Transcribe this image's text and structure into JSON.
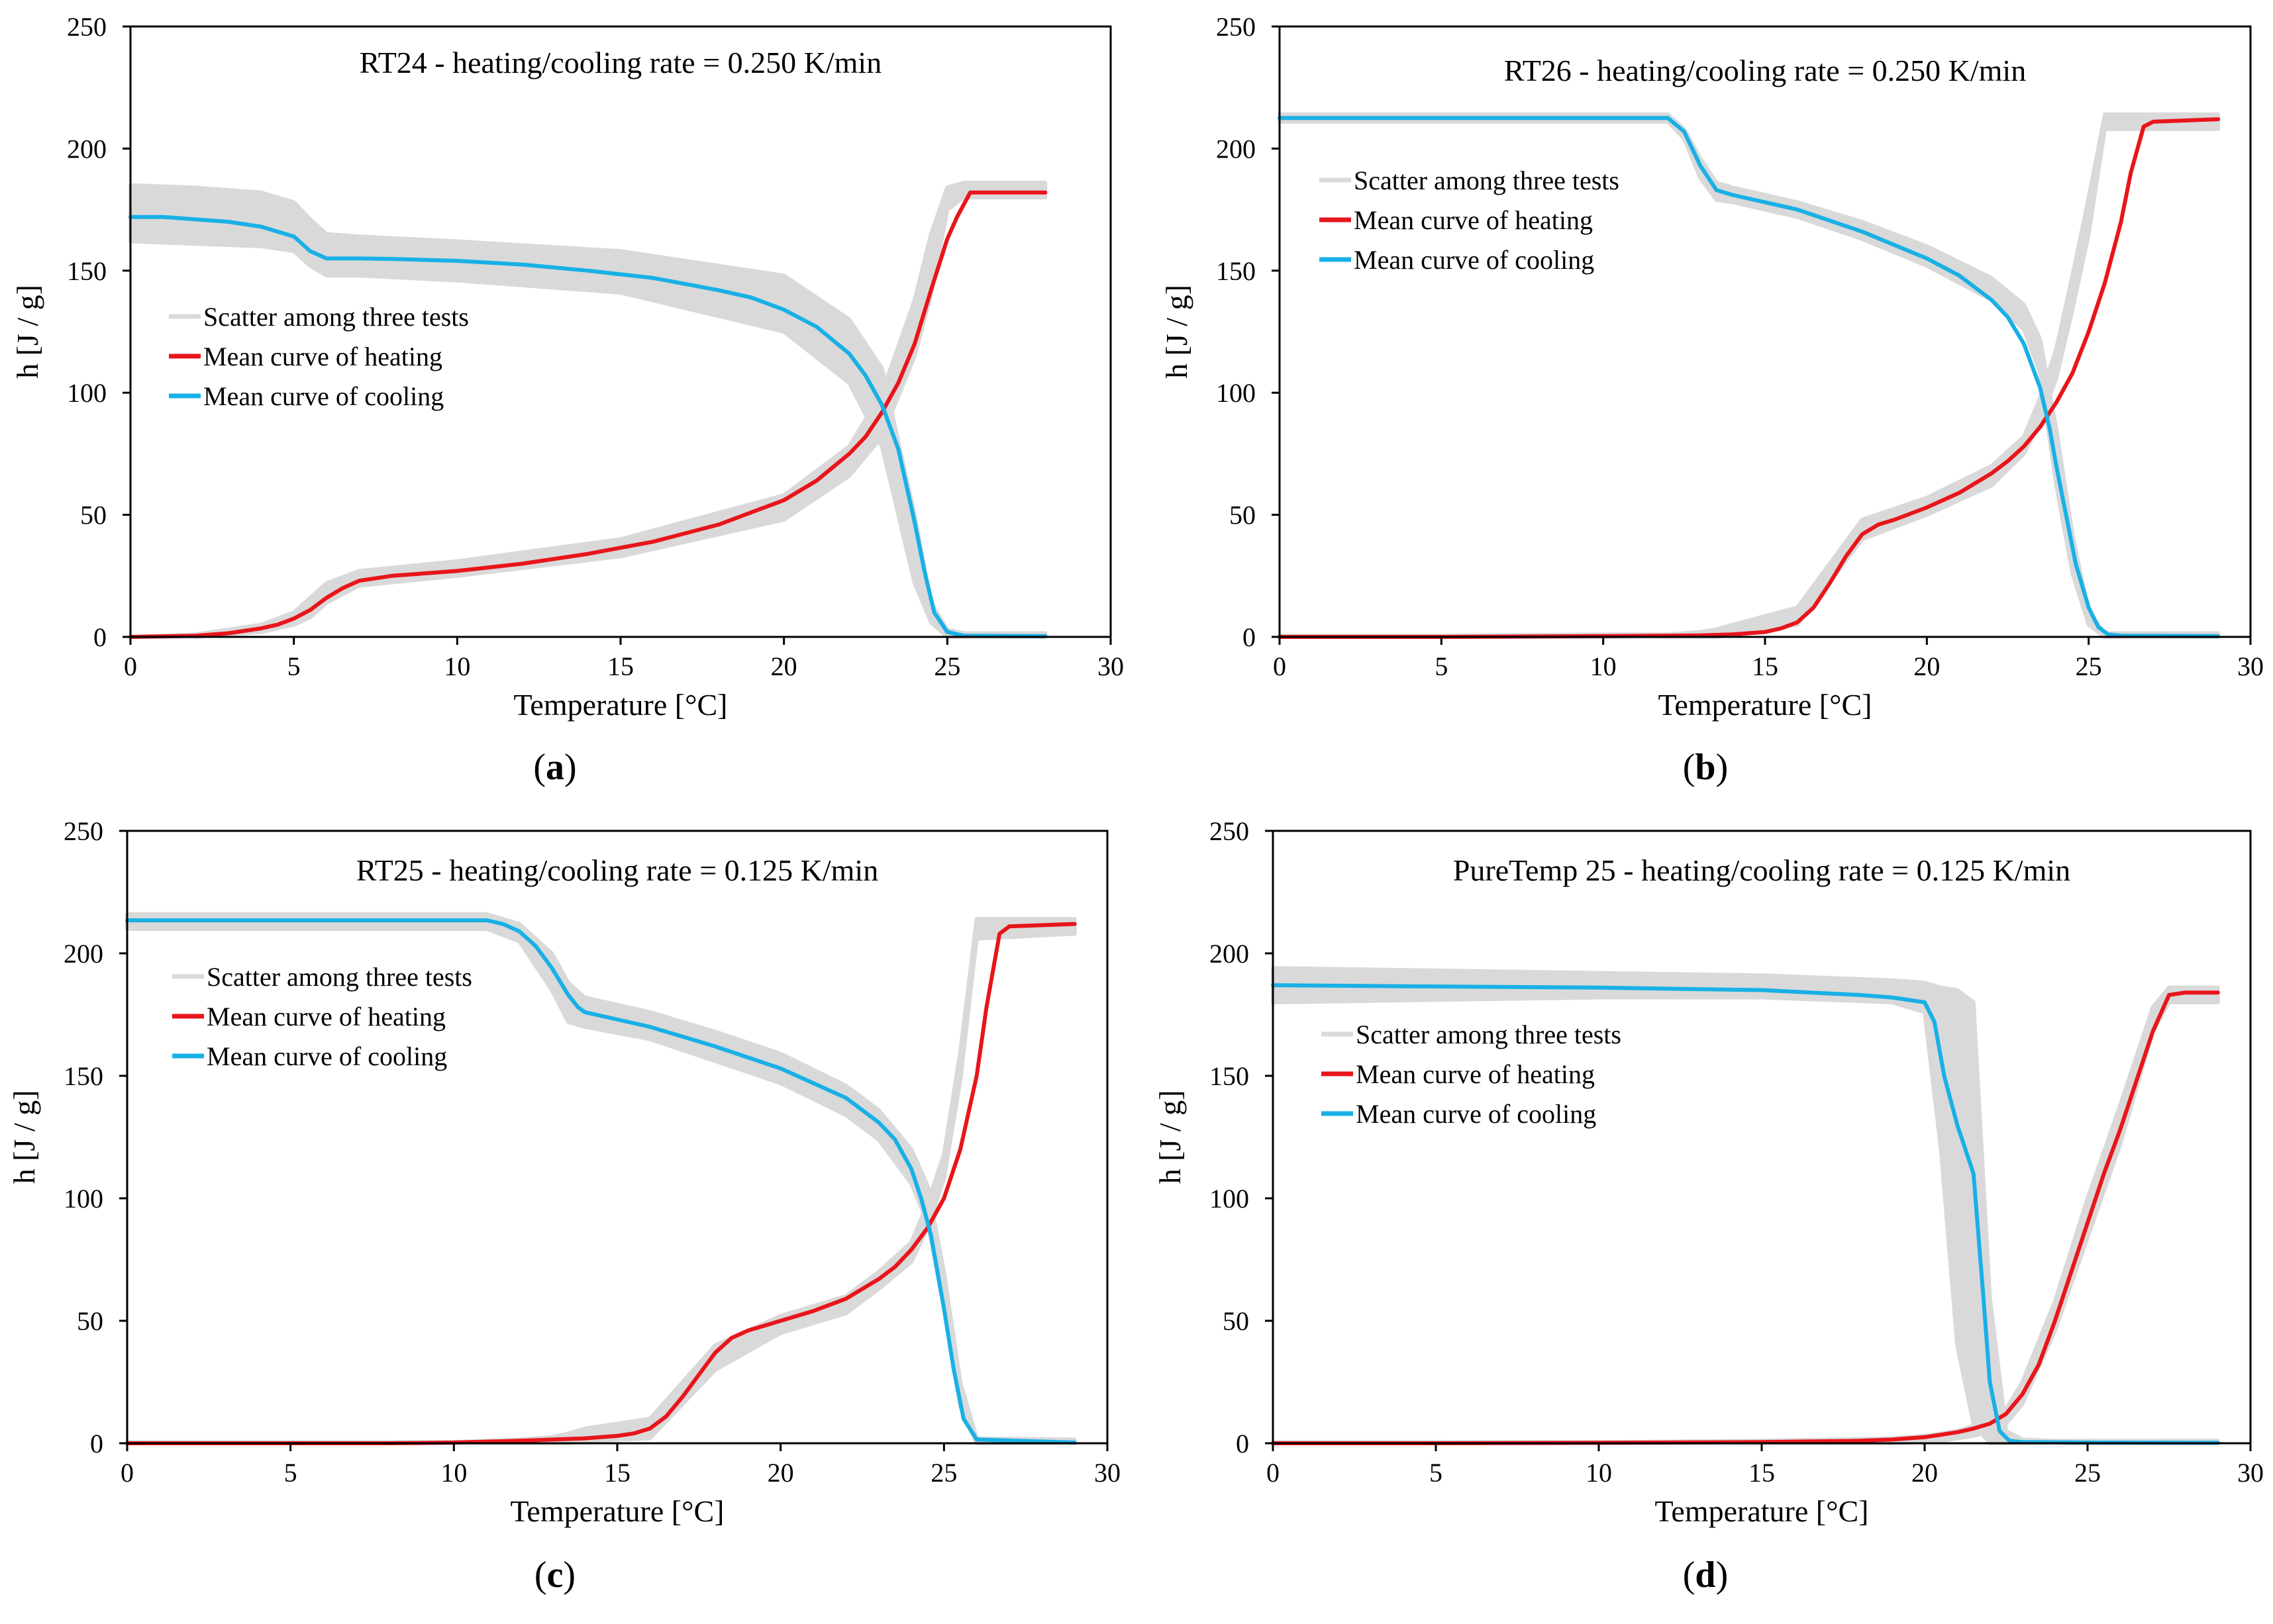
{
  "chart_data": [
    {
      "id": "a",
      "type": "line",
      "caption": "a",
      "title": "RT24 - heating/cooling rate = 0.250 K/min",
      "xlabel": "Temperature [°C]",
      "ylabel": "h [J / g]",
      "xlim": [
        0,
        30
      ],
      "ylim": [
        0,
        250
      ],
      "xticks": [
        0,
        5,
        10,
        15,
        20,
        25,
        30
      ],
      "xtick_labels": [
        "0",
        "5",
        "10",
        "15",
        "20",
        "25",
        "30"
      ],
      "yticks": [
        0,
        50,
        100,
        150,
        200,
        250
      ],
      "legend": {
        "placement": "left"
      },
      "scatter_band": {
        "name": "Scatter among three tests",
        "color": "#d9d9d9",
        "x": [
          0,
          2,
          4,
          5,
          5.5,
          6,
          7,
          10,
          15,
          20,
          22,
          23,
          24,
          24.5,
          25,
          25.5,
          26,
          28
        ],
        "upper": [
          185,
          184,
          182,
          178,
          171,
          165,
          164,
          162,
          158,
          148,
          130,
          110,
          50,
          14,
          3,
          1.5,
          1.5,
          1.5
        ],
        "lower": [
          162,
          161,
          160,
          158,
          152,
          148,
          148,
          146,
          141,
          125,
          104,
          78,
          22,
          6,
          0,
          0,
          0,
          0
        ],
        "heating_upper": [
          0,
          1,
          5,
          10,
          16,
          22,
          27,
          31,
          40,
          58,
          78,
          100,
          138,
          165,
          184,
          186,
          186,
          186
        ],
        "heating_lower": [
          0,
          0,
          2,
          5,
          8,
          14,
          21,
          25,
          33,
          48,
          66,
          82,
          115,
          140,
          175,
          180,
          180,
          180
        ]
      },
      "series": [
        {
          "name": "Mean curve of heating",
          "color": "#e8151b",
          "x": [
            0,
            2,
            3,
            4,
            4.5,
            5,
            5.5,
            6,
            6.5,
            7,
            8,
            10,
            12,
            14,
            16,
            18,
            20,
            21,
            22,
            22.5,
            23,
            23.5,
            24,
            24.5,
            25,
            25.3,
            25.7,
            26,
            28
          ],
          "y": [
            0,
            0.5,
            1.5,
            3.5,
            5,
            7.5,
            11,
            16,
            20,
            23,
            25,
            27,
            30,
            34,
            39,
            46,
            56,
            64,
            75,
            82,
            92,
            104,
            120,
            142,
            163,
            172,
            182,
            182,
            182
          ]
        },
        {
          "name": "Mean curve of cooling",
          "color": "#18b0e6",
          "x": [
            0,
            1,
            2,
            3,
            4,
            5,
            5.5,
            6,
            7,
            8,
            10,
            12,
            14,
            16,
            18,
            19,
            20,
            21,
            22,
            22.5,
            23,
            23.5,
            24,
            24.3,
            24.6,
            25,
            25.5,
            28
          ],
          "y": [
            172,
            172,
            171,
            170,
            168,
            164,
            158,
            155,
            155,
            154.8,
            154,
            152.5,
            150,
            147,
            142,
            139,
            134,
            127,
            116,
            107,
            95,
            77,
            47,
            27,
            10,
            2,
            0.5,
            0.3
          ]
        }
      ]
    },
    {
      "id": "b",
      "type": "line",
      "caption": "b",
      "title": "RT26 - heating/cooling rate = 0.250 K/min",
      "xlabel": "Temperature [°C]",
      "ylabel": "h [J / g]",
      "xlim": [
        0,
        30
      ],
      "ylim": [
        0,
        250
      ],
      "xticks": [
        0,
        5,
        10,
        15,
        20,
        25,
        30
      ],
      "xtick_labels": [
        "0",
        "5",
        "10",
        "15",
        "20",
        "25",
        "30"
      ],
      "yticks": [
        0,
        50,
        100,
        150,
        200,
        250
      ],
      "legend": {
        "placement": "top-left"
      },
      "scatter_band": {
        "name": "Scatter among three tests",
        "color": "#d9d9d9",
        "x": [
          0,
          5,
          10,
          12,
          12.5,
          13,
          13.5,
          14,
          16,
          18,
          20,
          22,
          23,
          23.5,
          24,
          24.5,
          25,
          25.5,
          29
        ],
        "upper": [
          214,
          214,
          214,
          214,
          208,
          196,
          186,
          184,
          178,
          170,
          160,
          147,
          136,
          122,
          85,
          42,
          10,
          1.5,
          1.5
        ],
        "lower": [
          211,
          211,
          211,
          211,
          204,
          188,
          179,
          178,
          172,
          163,
          152,
          138,
          126,
          108,
          62,
          26,
          5,
          0,
          0
        ],
        "heating_upper": [
          0.5,
          0.5,
          1,
          1,
          1.5,
          2,
          3,
          5,
          12,
          48,
          57,
          70,
          82,
          98,
          118,
          148,
          180,
          214,
          214
        ],
        "heating_lower": [
          0,
          0,
          0,
          0,
          0,
          0,
          0,
          1,
          5,
          40,
          50,
          62,
          75,
          88,
          106,
          134,
          165,
          208,
          208
        ]
      },
      "series": [
        {
          "name": "Mean curve of heating",
          "color": "#e8151b",
          "x": [
            0,
            5,
            10,
            13,
            14,
            15,
            15.5,
            16,
            16.5,
            17,
            17.5,
            18,
            18.5,
            19,
            20,
            21,
            22,
            22.5,
            23,
            23.5,
            24,
            24.5,
            25,
            25.5,
            26,
            26.3,
            26.7,
            27,
            29
          ],
          "y": [
            0,
            0,
            0.3,
            0.6,
            1,
            2,
            3.5,
            6,
            12,
            22,
            33,
            42,
            46,
            48,
            53,
            59,
            67,
            72,
            78,
            86,
            96,
            108,
            125,
            145,
            170,
            190,
            209,
            211,
            212
          ]
        },
        {
          "name": "Mean curve of cooling",
          "color": "#18b0e6",
          "x": [
            0,
            5,
            10,
            12,
            12.5,
            13,
            13.5,
            14,
            16,
            18,
            20,
            21,
            22,
            22.5,
            23,
            23.5,
            23.8,
            24,
            24.3,
            24.6,
            25,
            25.3,
            25.6,
            26,
            29
          ],
          "y": [
            212.5,
            212.5,
            212.5,
            212.5,
            207,
            193,
            183,
            181,
            175,
            166,
            155,
            148,
            138,
            131,
            120,
            102,
            85,
            70,
            50,
            30,
            12,
            4,
            1,
            0.5,
            0.3
          ]
        }
      ]
    },
    {
      "id": "c",
      "type": "line",
      "caption": "c",
      "title": "RT25 - heating/cooling rate = 0.125 K/min",
      "xlabel": "Temperature [°C]",
      "ylabel": "h [J / g]",
      "xlim": [
        0,
        30
      ],
      "ylim": [
        0,
        250
      ],
      "xticks": [
        0,
        5,
        10,
        15,
        20,
        25,
        30
      ],
      "xtick_labels": [
        "0",
        "5",
        "10",
        "15",
        "20",
        "25",
        "30"
      ],
      "yticks": [
        0,
        50,
        100,
        150,
        200,
        250
      ],
      "legend": {
        "placement": "top-left"
      },
      "scatter_band": {
        "name": "Scatter among three tests",
        "color": "#d9d9d9",
        "x": [
          0,
          5,
          10,
          11,
          12,
          13,
          13.5,
          14,
          16,
          18,
          20,
          22,
          23,
          24,
          24.5,
          25,
          25.5,
          26,
          29
        ],
        "upper": [
          216,
          216,
          216,
          216,
          212,
          200,
          188,
          182,
          176,
          168,
          159,
          146,
          136,
          120,
          105,
          70,
          25,
          2,
          1.5
        ],
        "lower": [
          210,
          210,
          210,
          210,
          205,
          185,
          172,
          170,
          165,
          156,
          147,
          134,
          124,
          106,
          90,
          55,
          15,
          0,
          0
        ],
        "heating_upper": [
          0.5,
          0.5,
          0.5,
          1,
          1.5,
          2.5,
          4,
          6,
          10,
          40,
          52,
          60,
          70,
          82,
          98,
          118,
          160,
          214,
          214
        ],
        "heating_lower": [
          0,
          0,
          0,
          0,
          0,
          0,
          0,
          1,
          2,
          30,
          45,
          53,
          63,
          74,
          88,
          108,
          148,
          206,
          208
        ]
      },
      "series": [
        {
          "name": "Mean curve of heating",
          "color": "#e8151b",
          "x": [
            0,
            5,
            8,
            10,
            12,
            14,
            15,
            15.5,
            16,
            16.5,
            17,
            17.5,
            18,
            18.5,
            19,
            20,
            21,
            22,
            23,
            23.5,
            24,
            24.5,
            25,
            25.5,
            26,
            26.3,
            26.7,
            27,
            29
          ],
          "y": [
            0,
            0,
            0,
            0.3,
            1,
            2,
            3,
            4,
            6,
            11,
            19,
            28,
            37,
            43,
            46,
            50,
            54,
            59,
            67,
            72,
            79,
            88,
            100,
            120,
            150,
            178,
            208,
            211,
            212
          ]
        },
        {
          "name": "Mean curve of cooling",
          "color": "#18b0e6",
          "x": [
            0,
            5,
            10,
            11,
            11.5,
            12,
            12.5,
            13,
            13.5,
            13.8,
            14,
            16,
            18,
            20,
            22,
            23,
            23.5,
            24,
            24.3,
            24.6,
            25,
            25.3,
            25.6,
            26,
            29
          ],
          "y": [
            213.5,
            213.5,
            213.5,
            213.5,
            212,
            209,
            203,
            194,
            183,
            178,
            176,
            170,
            162,
            153,
            141,
            131,
            124,
            112,
            100,
            85,
            55,
            30,
            10,
            1.5,
            0.3
          ]
        }
      ]
    },
    {
      "id": "d",
      "type": "line",
      "caption": "d",
      "title": "PureTemp 25 - heating/cooling rate = 0.125 K/min",
      "xlabel": "Temperature [°C]",
      "ylabel": "h [J / g]",
      "xlim": [
        0,
        30
      ],
      "ylim": [
        0,
        250
      ],
      "xticks": [
        0,
        5,
        10,
        15,
        20,
        25,
        30
      ],
      "xtick_labels": [
        "0",
        "5",
        "10",
        "15",
        "20",
        "25",
        "30"
      ],
      "yticks": [
        0,
        50,
        100,
        150,
        200,
        250
      ],
      "legend": {
        "placement": "top-left"
      },
      "scatter_band": {
        "name": "Scatter among three tests",
        "color": "#d9d9d9",
        "x": [
          0,
          5,
          10,
          15,
          19,
          20,
          20.5,
          21,
          21.5,
          22,
          22.5,
          23,
          24,
          25,
          26,
          27,
          27.5,
          28,
          29
        ],
        "upper": [
          194,
          193,
          192,
          191,
          189,
          188,
          186,
          185,
          180,
          60,
          5,
          1.5,
          1,
          1,
          1,
          1,
          1,
          1,
          1
        ],
        "lower": [
          180,
          181,
          182,
          182,
          180,
          176,
          120,
          40,
          8,
          0,
          0,
          0,
          0,
          0,
          0,
          0,
          0,
          0,
          0
        ],
        "heating_upper": [
          0.5,
          0.5,
          0.5,
          1,
          2,
          3,
          4,
          5,
          7,
          9,
          14,
          25,
          58,
          100,
          138,
          178,
          186,
          186,
          186
        ],
        "heating_lower": [
          0,
          0,
          0,
          0,
          0,
          0.5,
          1,
          2,
          3,
          5,
          8,
          16,
          46,
          84,
          122,
          168,
          180,
          180,
          180
        ]
      },
      "series": [
        {
          "name": "Mean curve of heating",
          "color": "#e8151b",
          "x": [
            0,
            5,
            10,
            15,
            18,
            19,
            20,
            20.5,
            21,
            21.5,
            22,
            22.5,
            23,
            23.5,
            24,
            24.5,
            25,
            25.5,
            26,
            26.5,
            27,
            27.5,
            28,
            29
          ],
          "y": [
            0,
            0,
            0.2,
            0.5,
            1,
            1.5,
            2.5,
            3.5,
            4.5,
            6,
            8,
            12,
            20,
            32,
            50,
            70,
            90,
            110,
            128,
            148,
            168,
            183,
            184,
            184
          ]
        },
        {
          "name": "Mean curve of cooling",
          "color": "#18b0e6",
          "x": [
            0,
            5,
            10,
            15,
            18,
            19,
            20,
            20.3,
            20.6,
            21,
            21.5,
            21.8,
            22,
            22.3,
            22.6,
            23,
            25,
            29
          ],
          "y": [
            187,
            186.5,
            186,
            185,
            183,
            182,
            180,
            172,
            150,
            130,
            110,
            60,
            25,
            5,
            1,
            0.5,
            0.3,
            0.2
          ]
        }
      ]
    }
  ]
}
